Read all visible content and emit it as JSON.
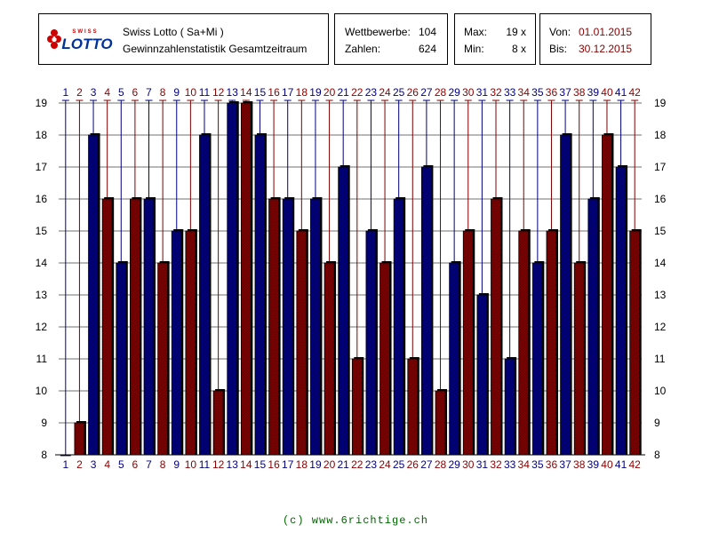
{
  "header": {
    "title": "Swiss Lotto ( Sa+Mi )",
    "subtitle": "Gewinnzahlenstatistik Gesamtzeitraum",
    "logo_top": "SWISS",
    "logo_main": "LOTTO",
    "wettbewerbe_label": "Wettbewerbe:",
    "wettbewerbe_value": "104",
    "zahlen_label": "Zahlen:",
    "zahlen_value": "624",
    "max_label": "Max:",
    "max_value": "19 x",
    "min_label": "Min:",
    "min_value": "8 x",
    "von_label": "Von:",
    "von_value": "01.01.2015",
    "bis_label": "Bis:",
    "bis_value": "30.12.2015"
  },
  "footer": {
    "text": "(c) www.6richtige.ch"
  },
  "colors": {
    "blue": "#000080",
    "red": "#800000",
    "label_red": "#8b0000",
    "grid": "#000000"
  },
  "chart_data": {
    "type": "bar",
    "categories": [
      "1",
      "2",
      "3",
      "4",
      "5",
      "6",
      "7",
      "8",
      "9",
      "10",
      "11",
      "12",
      "13",
      "14",
      "15",
      "16",
      "17",
      "18",
      "19",
      "20",
      "21",
      "22",
      "23",
      "24",
      "25",
      "26",
      "27",
      "28",
      "29",
      "30",
      "31",
      "32",
      "33",
      "34",
      "35",
      "36",
      "37",
      "38",
      "39",
      "40",
      "41",
      "42"
    ],
    "values": [
      8,
      9,
      18,
      16,
      14,
      16,
      16,
      14,
      15,
      15,
      18,
      10,
      19,
      19,
      18,
      16,
      16,
      15,
      16,
      14,
      17,
      11,
      15,
      14,
      16,
      11,
      17,
      10,
      14,
      15,
      13,
      16,
      11,
      15,
      14,
      15,
      18,
      14,
      16,
      18,
      17,
      15
    ],
    "ylim": [
      8,
      19
    ],
    "yticks": [
      8,
      9,
      10,
      11,
      12,
      13,
      14,
      15,
      16,
      17,
      18,
      19
    ],
    "grid": true,
    "color_pattern": "odd numbers blue, even numbers red"
  }
}
